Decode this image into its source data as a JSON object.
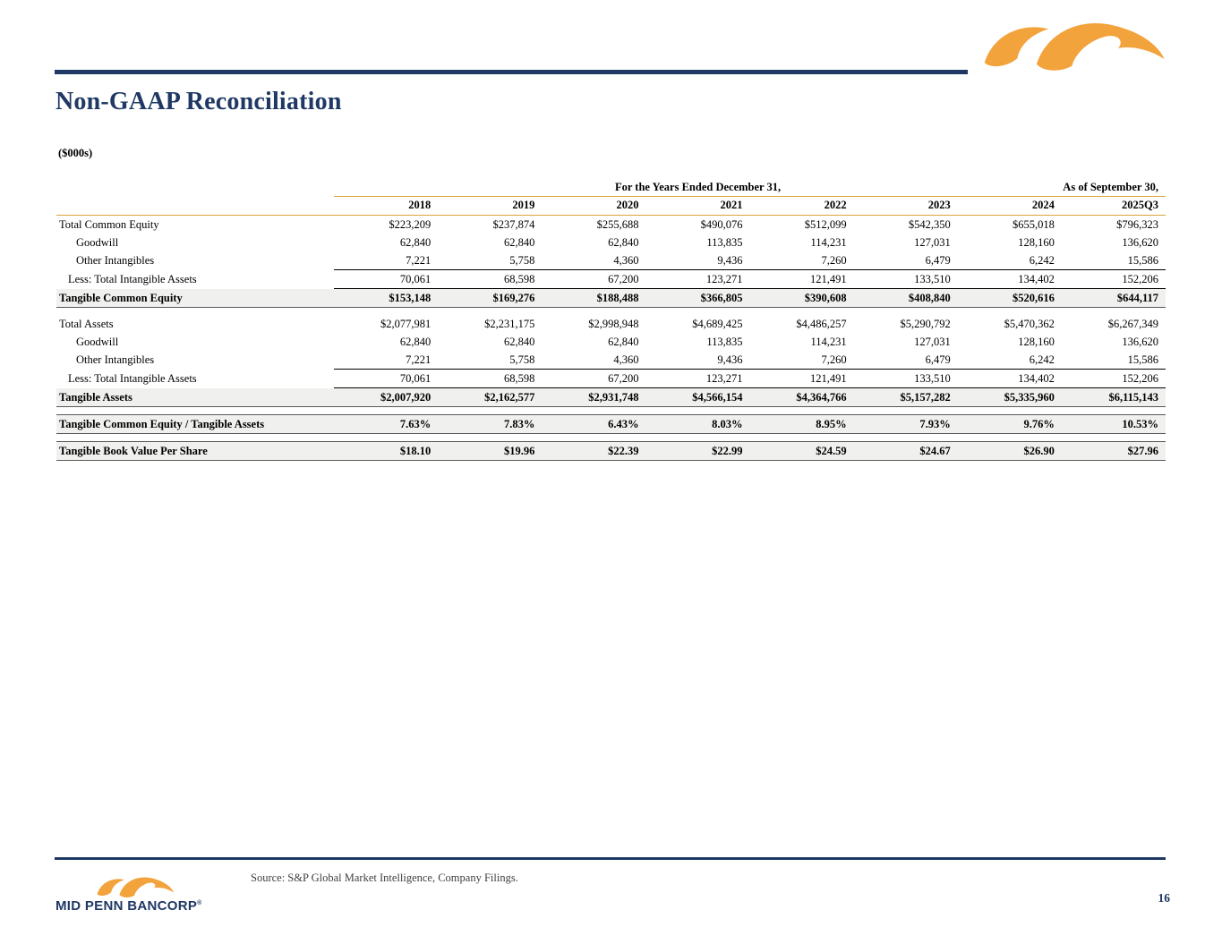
{
  "slide": {
    "title": "Non-GAAP Reconciliation",
    "units": "($000s)",
    "source_note": "Source: S&P Global Market Intelligence, Company Filings.",
    "page_number": "16",
    "brand": {
      "name": "MID PENN BANCORP",
      "trademark": "®",
      "colors": {
        "navy": "#1f3864",
        "orange": "#f2a33c",
        "gold_rule": "#dba440",
        "row_shade": "#f0f0ee"
      }
    }
  },
  "table": {
    "group_headers": [
      {
        "label": "For the Years Ended December 31,",
        "span": 7
      },
      {
        "label": "As of September 30,",
        "span": 1
      }
    ],
    "columns": [
      "2018",
      "2019",
      "2020",
      "2021",
      "2022",
      "2023",
      "2024",
      "2025Q3"
    ],
    "rows": [
      {
        "label": "Total Common Equity",
        "indent": 0,
        "values": [
          "$223,209",
          "$237,874",
          "$255,688",
          "$490,076",
          "$512,099",
          "$542,350",
          "$655,018",
          "$796,323"
        ]
      },
      {
        "label": "Goodwill",
        "indent": 2,
        "values": [
          "62,840",
          "62,840",
          "62,840",
          "113,835",
          "114,231",
          "127,031",
          "128,160",
          "136,620"
        ]
      },
      {
        "label": "Other Intangibles",
        "indent": 2,
        "underline_values": true,
        "values": [
          "7,221",
          "5,758",
          "4,360",
          "9,436",
          "7,260",
          "6,479",
          "6,242",
          "15,586"
        ]
      },
      {
        "label": "Less: Total Intangible Assets",
        "indent": 1,
        "underline_values": true,
        "values": [
          "70,061",
          "68,598",
          "67,200",
          "123,271",
          "121,491",
          "133,510",
          "134,402",
          "152,206"
        ]
      },
      {
        "label": "Tangible Common Equity",
        "indent": 0,
        "total": true,
        "values": [
          "$153,148",
          "$169,276",
          "$188,488",
          "$366,805",
          "$390,608",
          "$408,840",
          "$520,616",
          "$644,117"
        ]
      },
      {
        "label": "Total Assets",
        "indent": 0,
        "spacer_before": true,
        "values": [
          "$2,077,981",
          "$2,231,175",
          "$2,998,948",
          "$4,689,425",
          "$4,486,257",
          "$5,290,792",
          "$5,470,362",
          "$6,267,349"
        ]
      },
      {
        "label": "Goodwill",
        "indent": 2,
        "values": [
          "62,840",
          "62,840",
          "62,840",
          "113,835",
          "114,231",
          "127,031",
          "128,160",
          "136,620"
        ]
      },
      {
        "label": "Other Intangibles",
        "indent": 2,
        "underline_values": true,
        "values": [
          "7,221",
          "5,758",
          "4,360",
          "9,436",
          "7,260",
          "6,479",
          "6,242",
          "15,586"
        ]
      },
      {
        "label": "Less: Total Intangible Assets",
        "indent": 1,
        "underline_values": true,
        "values": [
          "70,061",
          "68,598",
          "67,200",
          "123,271",
          "121,491",
          "133,510",
          "134,402",
          "152,206"
        ]
      },
      {
        "label": "Tangible Assets",
        "indent": 0,
        "total": true,
        "values": [
          "$2,007,920",
          "$2,162,577",
          "$2,931,748",
          "$4,566,154",
          "$4,364,766",
          "$5,157,282",
          "$5,335,960",
          "$6,115,143"
        ]
      },
      {
        "label": "Tangible Common Equity / Tangible Assets",
        "indent": 0,
        "total": true,
        "boxed": true,
        "spacer_before": true,
        "values": [
          "7.63%",
          "7.83%",
          "6.43%",
          "8.03%",
          "8.95%",
          "7.93%",
          "9.76%",
          "10.53%"
        ]
      },
      {
        "label": "Tangible Book Value Per Share",
        "indent": 0,
        "total": true,
        "boxed": true,
        "spacer_before": true,
        "values": [
          "$18.10",
          "$19.96",
          "$22.39",
          "$22.99",
          "$24.59",
          "$24.67",
          "$26.90",
          "$27.96"
        ]
      }
    ]
  }
}
